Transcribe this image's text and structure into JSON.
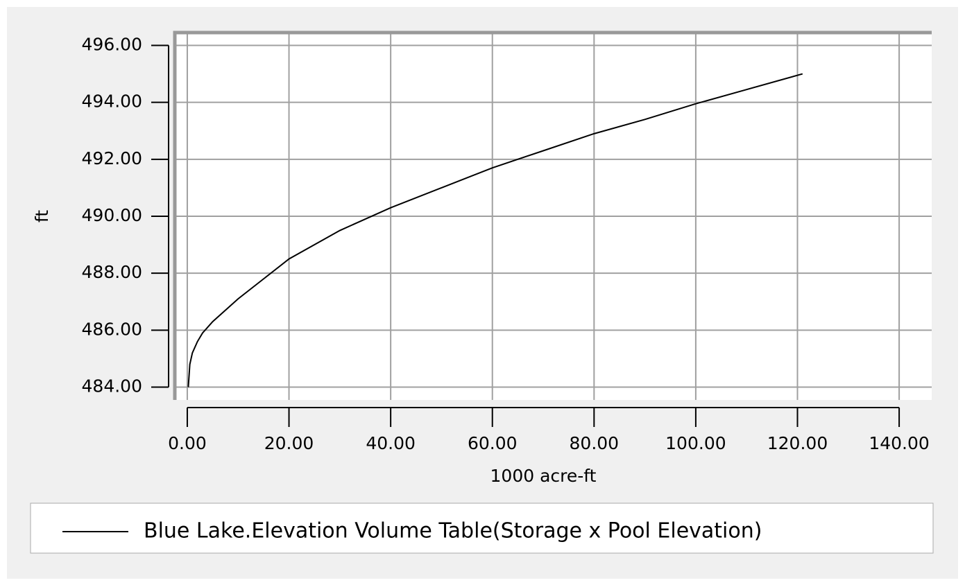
{
  "chart_data": {
    "type": "line",
    "x_label": "1000 acre-ft",
    "y_label": "ft",
    "x": [
      0.2,
      0.5,
      1,
      2,
      3,
      5,
      10,
      15,
      20,
      30,
      40,
      50,
      60,
      70,
      80,
      90,
      100,
      110,
      121
    ],
    "series": [
      {
        "name": "Blue Lake.Elevation Volume Table(Storage x Pool Elevation)",
        "color": "#000000",
        "values": [
          484.0,
          484.8,
          485.2,
          485.6,
          485.9,
          486.3,
          487.1,
          487.8,
          488.5,
          489.5,
          490.3,
          491.0,
          491.7,
          492.3,
          492.9,
          493.4,
          493.95,
          494.45,
          495.0
        ]
      }
    ],
    "xlim": [
      -2.45,
      146.4
    ],
    "ylim": [
      483.55,
      496.45
    ],
    "xticks": [
      {
        "value": 0,
        "label": "0.00"
      },
      {
        "value": 20,
        "label": "20.00"
      },
      {
        "value": 40,
        "label": "40.00"
      },
      {
        "value": 60,
        "label": "60.00"
      },
      {
        "value": 80,
        "label": "80.00"
      },
      {
        "value": 100,
        "label": "100.00"
      },
      {
        "value": 120,
        "label": "120.00"
      },
      {
        "value": 140,
        "label": "140.00"
      }
    ],
    "yticks": [
      {
        "value": 484,
        "label": "484.00"
      },
      {
        "value": 486,
        "label": "486.00"
      },
      {
        "value": 488,
        "label": "488.00"
      },
      {
        "value": 490,
        "label": "490.00"
      },
      {
        "value": 492,
        "label": "492.00"
      },
      {
        "value": 494,
        "label": "494.00"
      },
      {
        "value": 496,
        "label": "496.00"
      }
    ],
    "grid": true,
    "legend": "bottom"
  }
}
